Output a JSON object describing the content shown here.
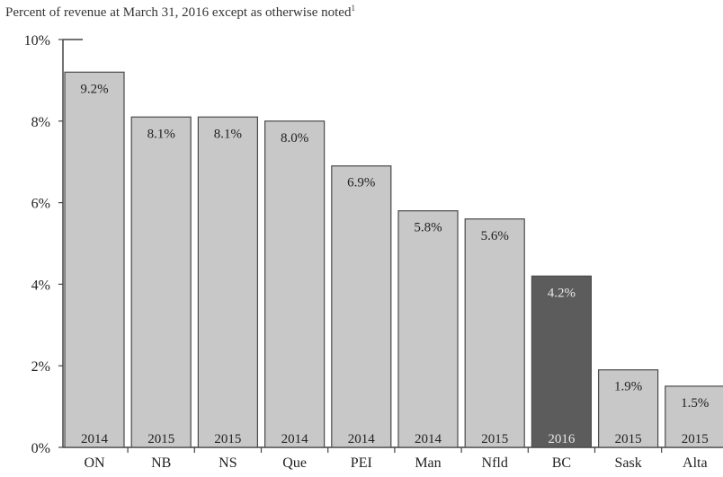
{
  "chart_data": {
    "type": "bar",
    "title": "Percent of revenue at March 31, 2016 except as otherwise noted",
    "title_note": "1",
    "xlabel": "",
    "ylabel": "",
    "ylim": [
      0,
      10
    ],
    "y_ticks": [
      0,
      2,
      4,
      6,
      8,
      10
    ],
    "y_tick_labels": [
      "0%",
      "2%",
      "4%",
      "6%",
      "8%",
      "10%"
    ],
    "categories": [
      "ON",
      "NB",
      "NS",
      "Que",
      "PEI",
      "Man",
      "Nfld",
      "BC",
      "Sask",
      "Alta"
    ],
    "values": [
      9.2,
      8.1,
      8.1,
      8.0,
      6.9,
      5.8,
      5.6,
      4.2,
      1.9,
      1.5
    ],
    "value_labels": [
      "9.2%",
      "8.1%",
      "8.1%",
      "8.0%",
      "6.9%",
      "5.8%",
      "5.6%",
      "4.2%",
      "1.9%",
      "1.5%"
    ],
    "years": [
      "2014",
      "2015",
      "2015",
      "2014",
      "2014",
      "2014",
      "2015",
      "2016",
      "2015",
      "2015"
    ],
    "highlight_index": 7,
    "bar_color": "#c8c8c8",
    "highlight_color": "#5c5c5c",
    "bar_stroke": "#4a4a4a",
    "grid": false
  }
}
